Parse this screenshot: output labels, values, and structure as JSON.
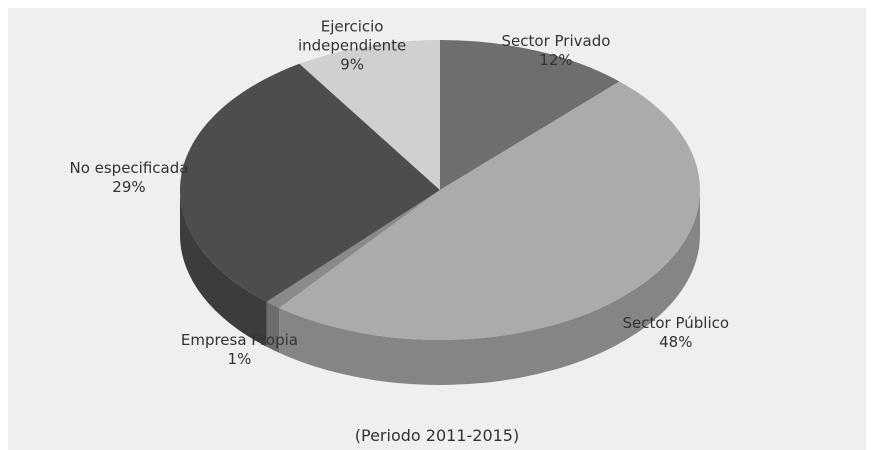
{
  "chart_data": {
    "type": "pie",
    "title": "(Periodo 2011-2015)",
    "categories": [
      "Sector Privado",
      "Sector Público",
      "Empresa Propia",
      "No especificada",
      "Ejercicio independiente"
    ],
    "values": [
      12,
      48,
      1,
      29,
      9
    ],
    "value_labels": [
      "12%",
      "48%",
      "1%",
      "29%",
      "9%"
    ],
    "colors": [
      "#6e6e6e",
      "#ababab",
      "#8a8a8a",
      "#4d4d4d",
      "#d0d0d0"
    ]
  }
}
